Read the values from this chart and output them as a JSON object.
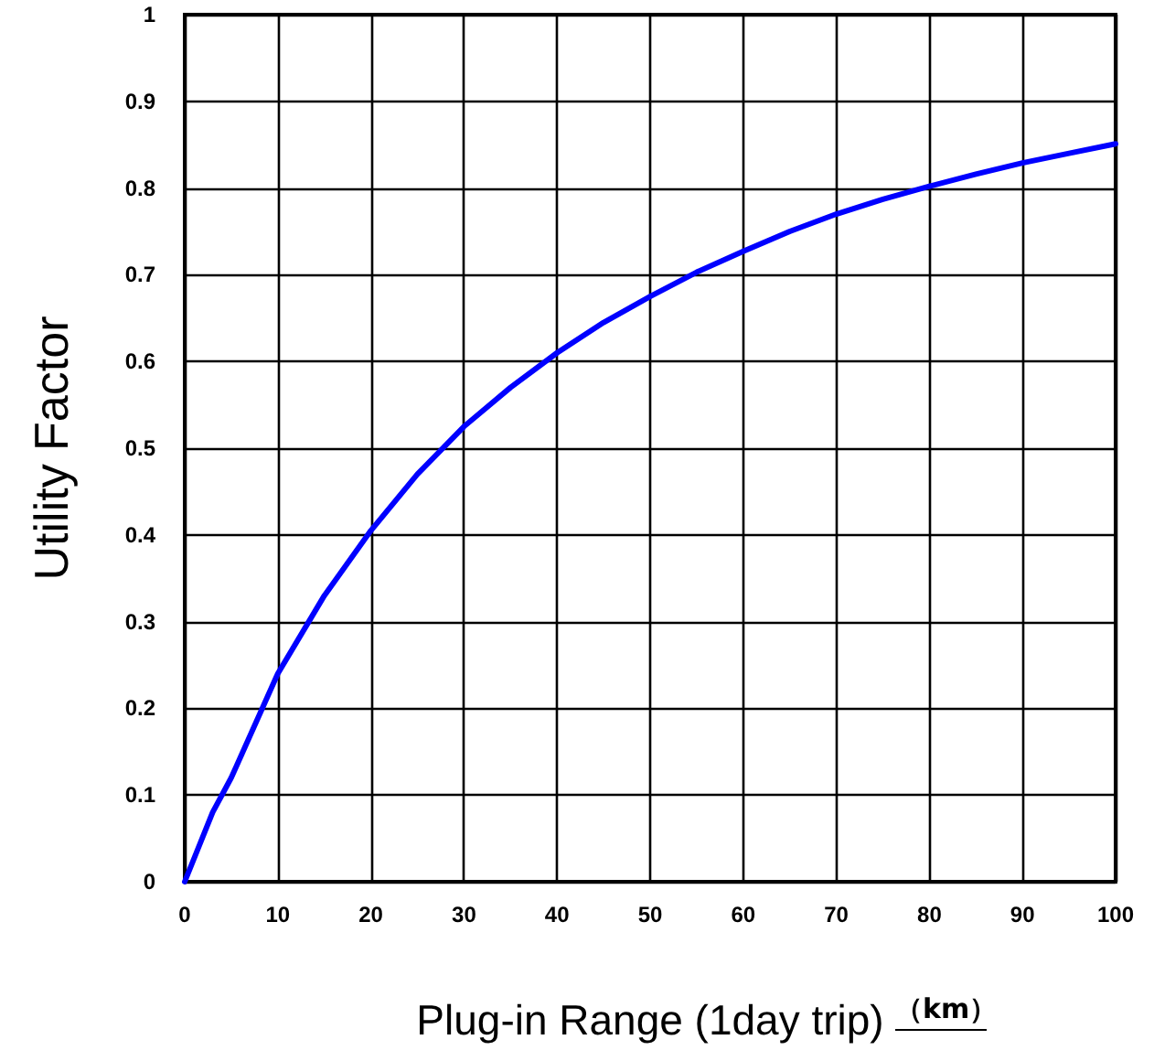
{
  "chart_data": {
    "type": "line",
    "xlabel": "Plug-in Range (1day trip)",
    "ylabel": "Utility Factor",
    "annotations": [
      "（km）"
    ],
    "x": [
      0,
      3,
      5,
      10,
      15,
      20,
      25,
      30,
      35,
      40,
      45,
      50,
      55,
      60,
      65,
      70,
      75,
      80,
      85,
      90,
      95,
      100
    ],
    "series": [
      {
        "color": "#0000ff",
        "values": [
          0,
          0.08,
          0.12,
          0.24,
          0.33,
          0.405,
          0.47,
          0.525,
          0.57,
          0.61,
          0.645,
          0.675,
          0.703,
          0.727,
          0.75,
          0.77,
          0.787,
          0.802,
          0.816,
          0.829,
          0.84,
          0.851
        ]
      }
    ],
    "xlim": [
      0,
      100
    ],
    "xticks": [
      0,
      10,
      20,
      30,
      40,
      50,
      60,
      70,
      80,
      90,
      100
    ],
    "ylim": [
      0,
      1
    ],
    "yticks": [
      0,
      0.1,
      0.2,
      0.3,
      0.4,
      0.5,
      0.6,
      0.7,
      0.8,
      0.9,
      1
    ],
    "grid": true,
    "marker": "none",
    "line_style": "solid"
  }
}
